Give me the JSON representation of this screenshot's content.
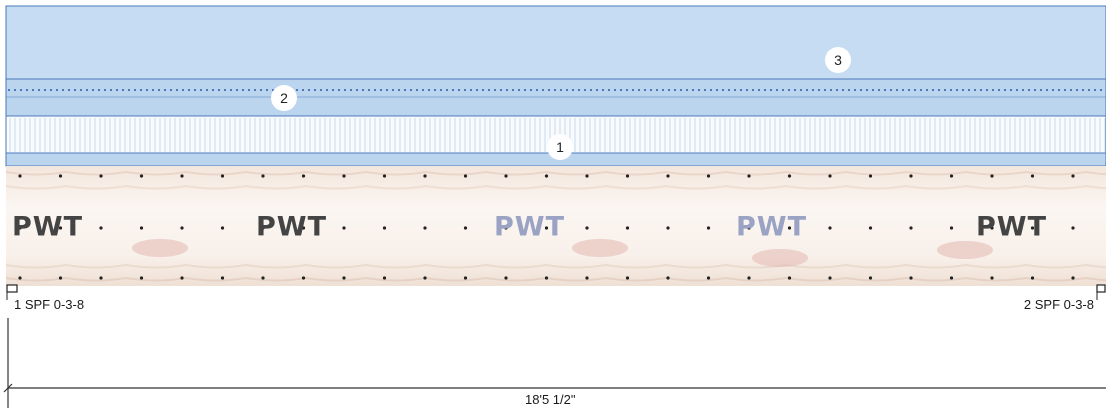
{
  "layers": [
    {
      "number": "3",
      "color": "#c5dcf3"
    },
    {
      "number": "2",
      "color": "#bcd5ef"
    },
    {
      "number": "1",
      "color": "#f8fbfe"
    }
  ],
  "board": {
    "stamp_text": "PWT",
    "stamp_count": 5,
    "color": "#f6efe8"
  },
  "supports": {
    "left": {
      "label": "1 SPF 0-3-8"
    },
    "right": {
      "label": "2 SPF 0-3-8"
    }
  },
  "dimension": {
    "label": "18'5 1/2\""
  },
  "colors": {
    "outline": "#4a78b8",
    "stamp_dark": "#444444",
    "stamp_light": "#9aa3c4",
    "dimension_line": "#333333"
  }
}
